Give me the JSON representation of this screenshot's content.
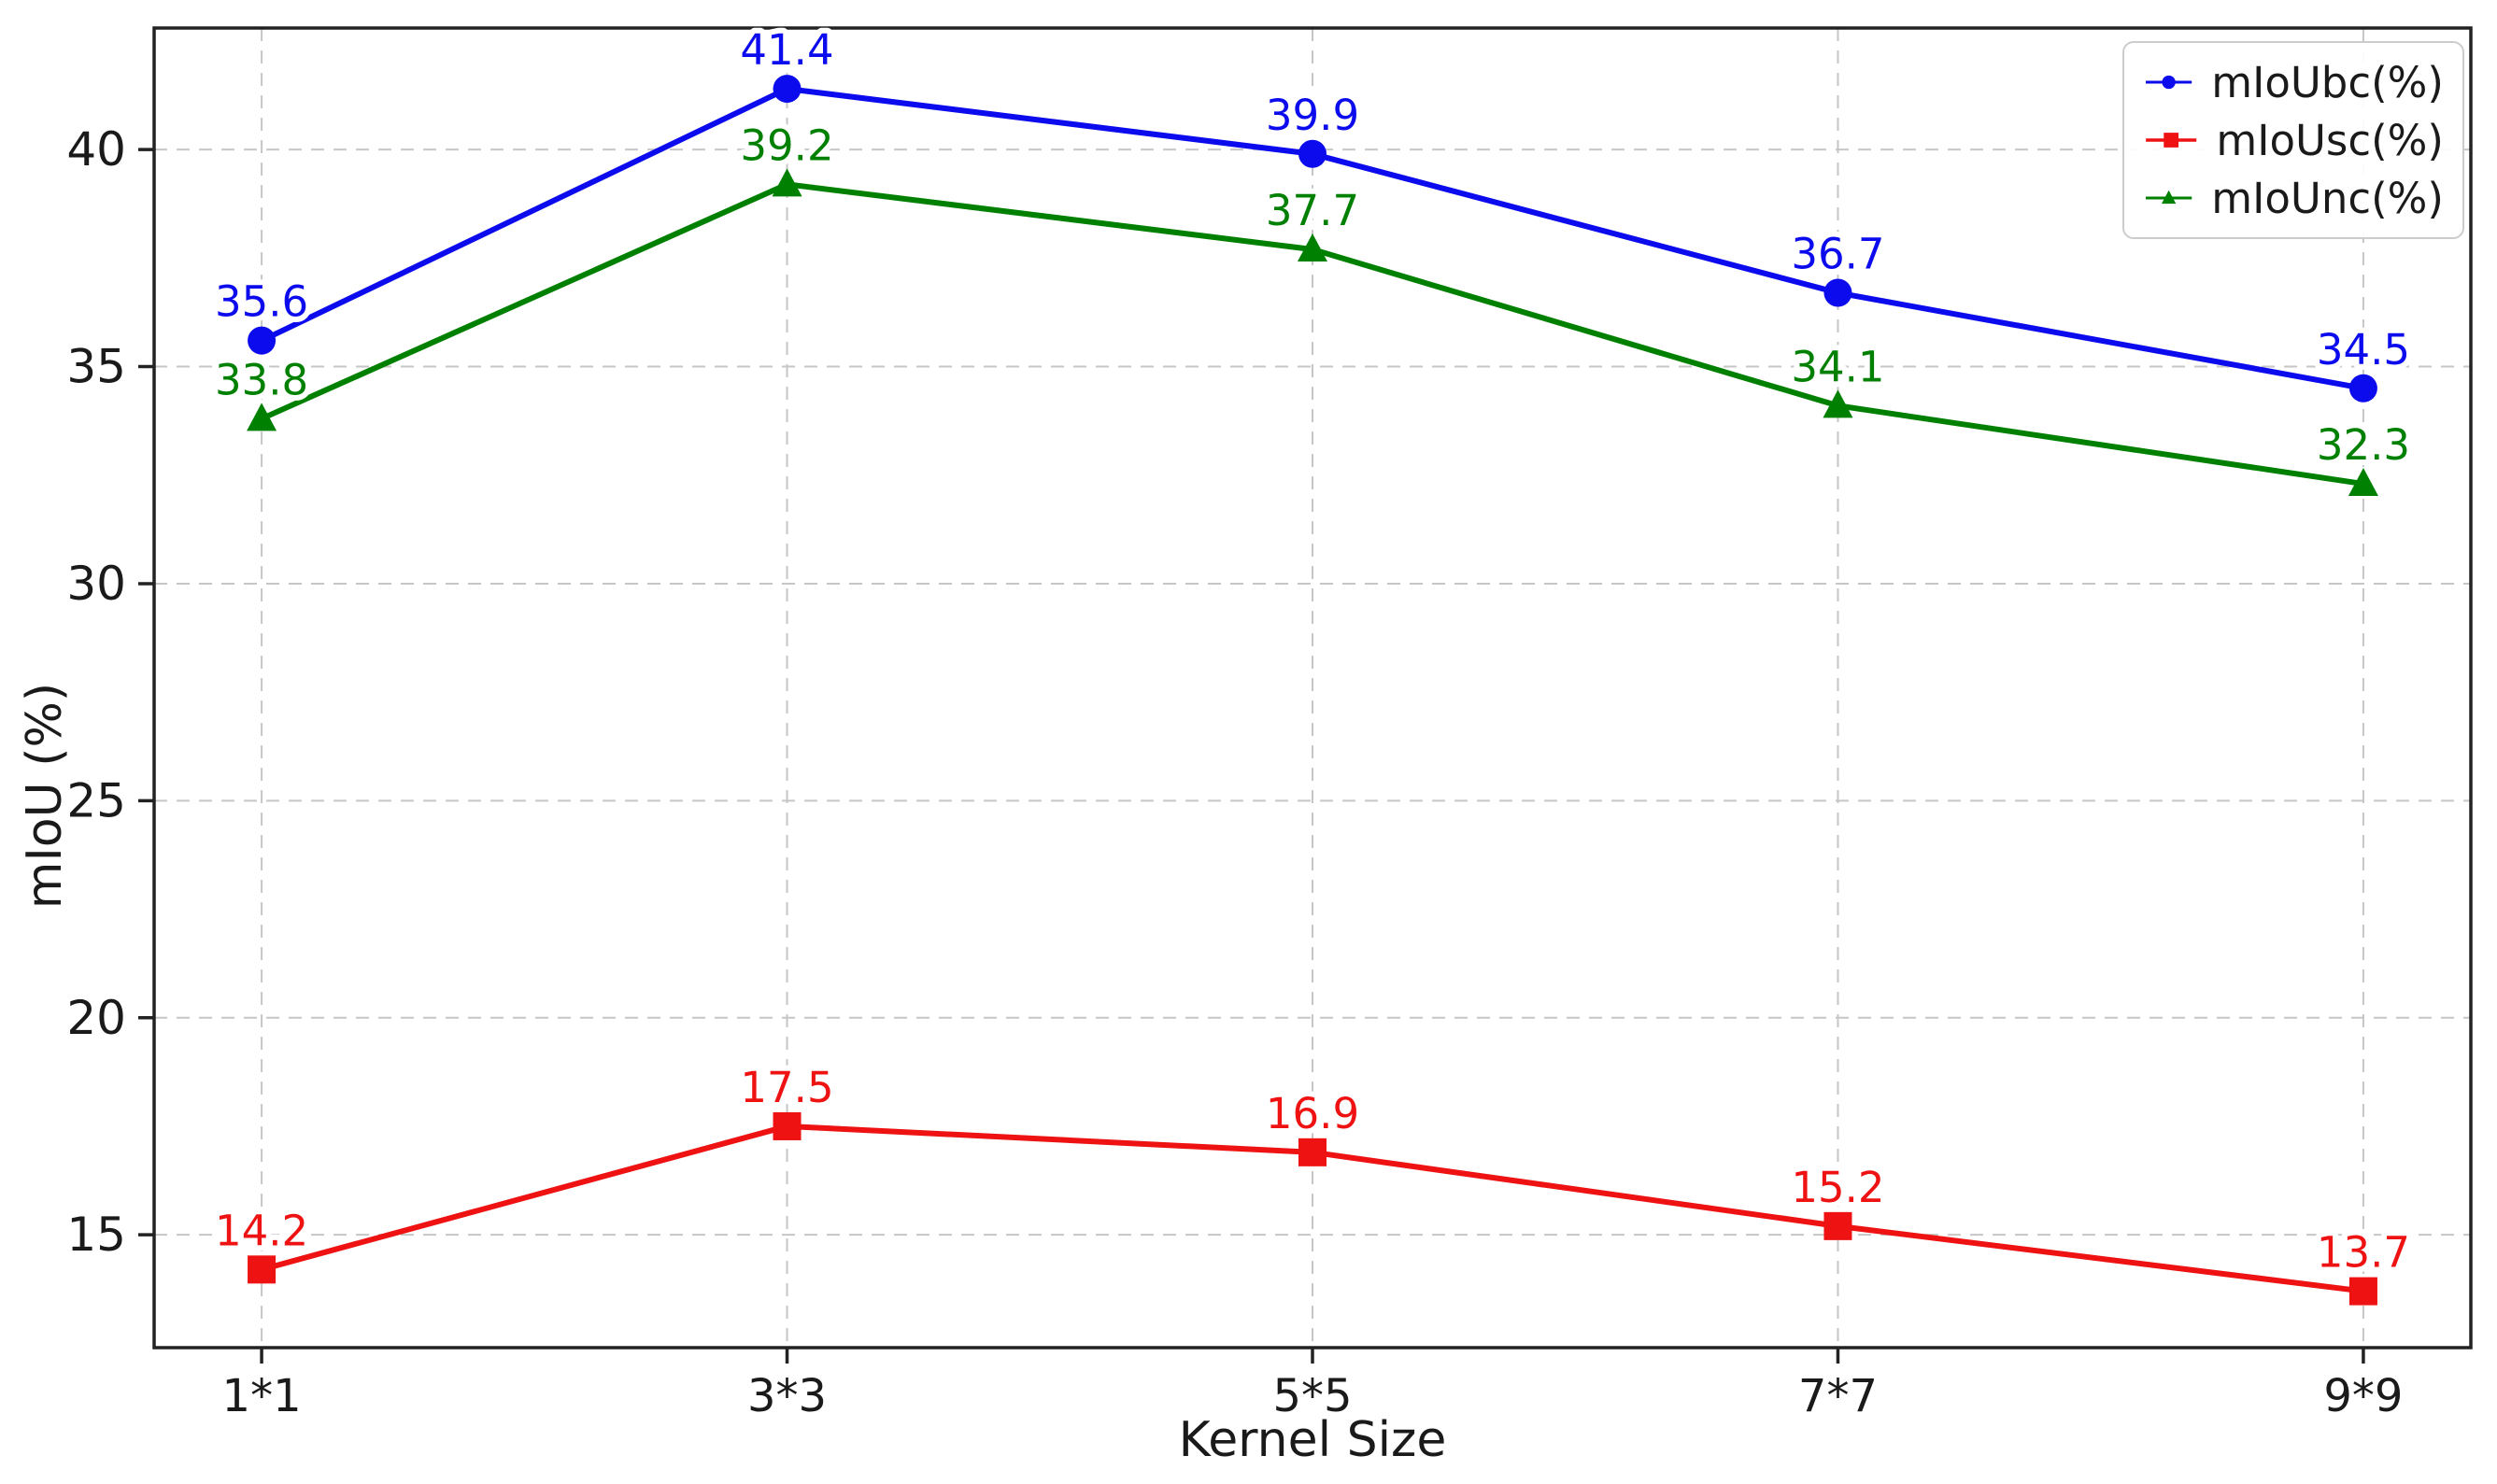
{
  "chart_data": {
    "type": "line",
    "title": "",
    "xlabel": "Kernel Size",
    "ylabel": "mIoU (%)",
    "categories": [
      "1*1",
      "3*3",
      "5*5",
      "7*7",
      "9*9"
    ],
    "series": [
      {
        "name": "mIoUbc(%)",
        "color": "#0b0bee",
        "marker": "circle",
        "values": [
          35.6,
          41.4,
          39.9,
          36.7,
          34.5
        ]
      },
      {
        "name": "mIoUsc(%)",
        "color": "#ee1212",
        "marker": "square",
        "values": [
          14.2,
          17.5,
          16.9,
          15.2,
          13.7
        ]
      },
      {
        "name": "mIoUnc(%)",
        "color": "#008000",
        "marker": "triangle",
        "values": [
          33.8,
          39.2,
          37.7,
          34.1,
          32.3
        ]
      }
    ],
    "yticks": [
      15,
      20,
      25,
      30,
      35,
      40
    ],
    "ylim": [
      12.4,
      42.8
    ],
    "grid": "dashed",
    "grid_color": "#c6c6c6",
    "spine_color": "#222222",
    "tick_label_color": "#1a1a1a",
    "legend_position": "upper right",
    "value_labels_shown": true
  }
}
